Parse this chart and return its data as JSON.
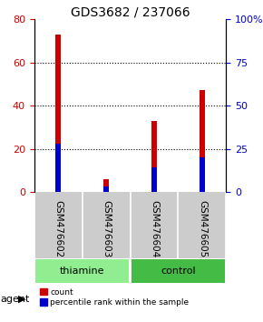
{
  "title": "GDS3682 / 237066",
  "samples": [
    "GSM476602",
    "GSM476603",
    "GSM476604",
    "GSM476605"
  ],
  "groups": [
    "thiamine",
    "thiamine",
    "control",
    "control"
  ],
  "group_colors": {
    "thiamine": "#90EE90",
    "control": "#55CC55"
  },
  "red_values": [
    73,
    6,
    33,
    47
  ],
  "blue_values": [
    28,
    3,
    14,
    20
  ],
  "left_ylim": [
    0,
    80
  ],
  "right_ylim": [
    0,
    100
  ],
  "left_yticks": [
    0,
    20,
    40,
    60,
    80
  ],
  "right_yticks": [
    0,
    25,
    50,
    75,
    100
  ],
  "right_yticklabels": [
    "0",
    "25",
    "50",
    "75",
    "100%"
  ],
  "red_color": "#CC0000",
  "blue_color": "#0000CC",
  "agent_label": "agent",
  "legend_red": "count",
  "legend_blue": "percentile rank within the sample",
  "label_fontsize": 8,
  "tick_fontsize": 8,
  "title_fontsize": 10,
  "bar_width": 0.12,
  "light_green": "#90EE90",
  "dark_green": "#44BB44"
}
